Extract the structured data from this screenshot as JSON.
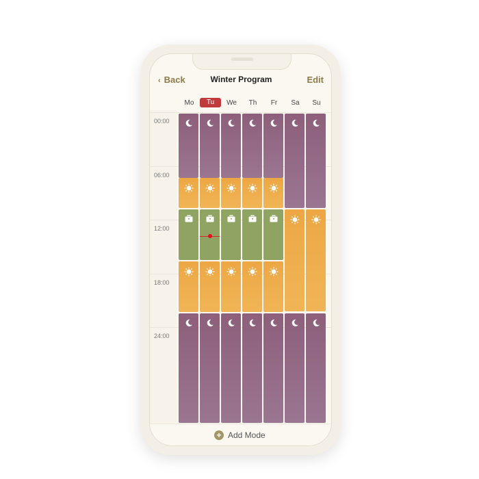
{
  "header": {
    "back_label": "Back",
    "title": "Winter Program",
    "edit_label": "Edit"
  },
  "days": [
    {
      "label": "Mo"
    },
    {
      "label": "Tu",
      "selected": true
    },
    {
      "label": "We"
    },
    {
      "label": "Th"
    },
    {
      "label": "Fr"
    },
    {
      "label": "Sa"
    },
    {
      "label": "Su"
    }
  ],
  "time_labels": [
    "00:00",
    "06:00",
    "12:00",
    "18:00",
    "24:00"
  ],
  "modes": {
    "sleep": {
      "icon": "moon-icon",
      "color": "#94677f"
    },
    "home": {
      "icon": "sun-icon",
      "color": "#eeae4a"
    },
    "work": {
      "icon": "briefcase-icon",
      "color": "#8fa462"
    }
  },
  "schedule": {
    "weekday": [
      {
        "mode": "sleep",
        "start": 0,
        "end": 7.2
      },
      {
        "mode": "home",
        "start": 7.2,
        "end": 10.5
      },
      {
        "mode": "work",
        "start": 10.7,
        "end": 16.3
      },
      {
        "mode": "home",
        "start": 16.5,
        "end": 22.1
      },
      {
        "mode": "sleep",
        "start": 22.3,
        "end": 34.5
      }
    ],
    "weekend": [
      {
        "mode": "sleep",
        "start": 0,
        "end": 10.5
      },
      {
        "mode": "home",
        "start": 10.7,
        "end": 22.1
      },
      {
        "mode": "sleep",
        "start": 22.3,
        "end": 34.5
      }
    ]
  },
  "current_time": {
    "day": "Tu",
    "hour": 13.7
  },
  "footer": {
    "add_mode_label": "Add Mode"
  }
}
